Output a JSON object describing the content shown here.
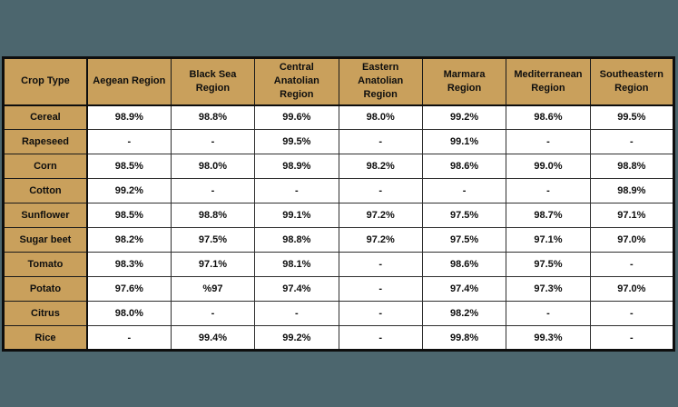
{
  "page": {
    "background_color": "#4c666e",
    "header_fill_color": "#c9a05c",
    "cell_fill_color": "#ffffff",
    "border_color": "#0e0e0e",
    "text_color": "#0e0e0e"
  },
  "chart_data": {
    "type": "table",
    "columns": [
      "Crop Type",
      "Aegean Region",
      "Black Sea Region",
      "Central Anatolian Region",
      "Eastern Anatolian Region",
      "Marmara Region",
      "Mediterranean Region",
      "Southeastern Region"
    ],
    "rows": [
      {
        "label": "Cereal",
        "values": [
          "98.9%",
          "98.8%",
          "99.6%",
          "98.0%",
          "99.2%",
          "98.6%",
          "99.5%"
        ]
      },
      {
        "label": "Rapeseed",
        "values": [
          "-",
          "-",
          "99.5%",
          "-",
          "99.1%",
          "-",
          "-"
        ]
      },
      {
        "label": "Corn",
        "values": [
          "98.5%",
          "98.0%",
          "98.9%",
          "98.2%",
          "98.6%",
          "99.0%",
          "98.8%"
        ]
      },
      {
        "label": "Cotton",
        "values": [
          "99.2%",
          "-",
          "-",
          "-",
          "-",
          "-",
          "98.9%"
        ]
      },
      {
        "label": "Sunflower",
        "values": [
          "98.5%",
          "98.8%",
          "99.1%",
          "97.2%",
          "97.5%",
          "98.7%",
          "97.1%"
        ]
      },
      {
        "label": "Sugar beet",
        "values": [
          "98.2%",
          "97.5%",
          "98.8%",
          "97.2%",
          "97.5%",
          "97.1%",
          "97.0%"
        ]
      },
      {
        "label": "Tomato",
        "values": [
          "98.3%",
          "97.1%",
          "98.1%",
          "-",
          "98.6%",
          "97.5%",
          "-"
        ]
      },
      {
        "label": "Potato",
        "values": [
          "97.6%",
          "%97",
          "97.4%",
          "-",
          "97.4%",
          "97.3%",
          "97.0%"
        ]
      },
      {
        "label": "Citrus",
        "values": [
          "98.0%",
          "-",
          "-",
          "-",
          "98.2%",
          "-",
          "-"
        ]
      },
      {
        "label": "Rice",
        "values": [
          "-",
          "99.4%",
          "99.2%",
          "-",
          "99.8%",
          "99.3%",
          "-"
        ]
      }
    ]
  }
}
